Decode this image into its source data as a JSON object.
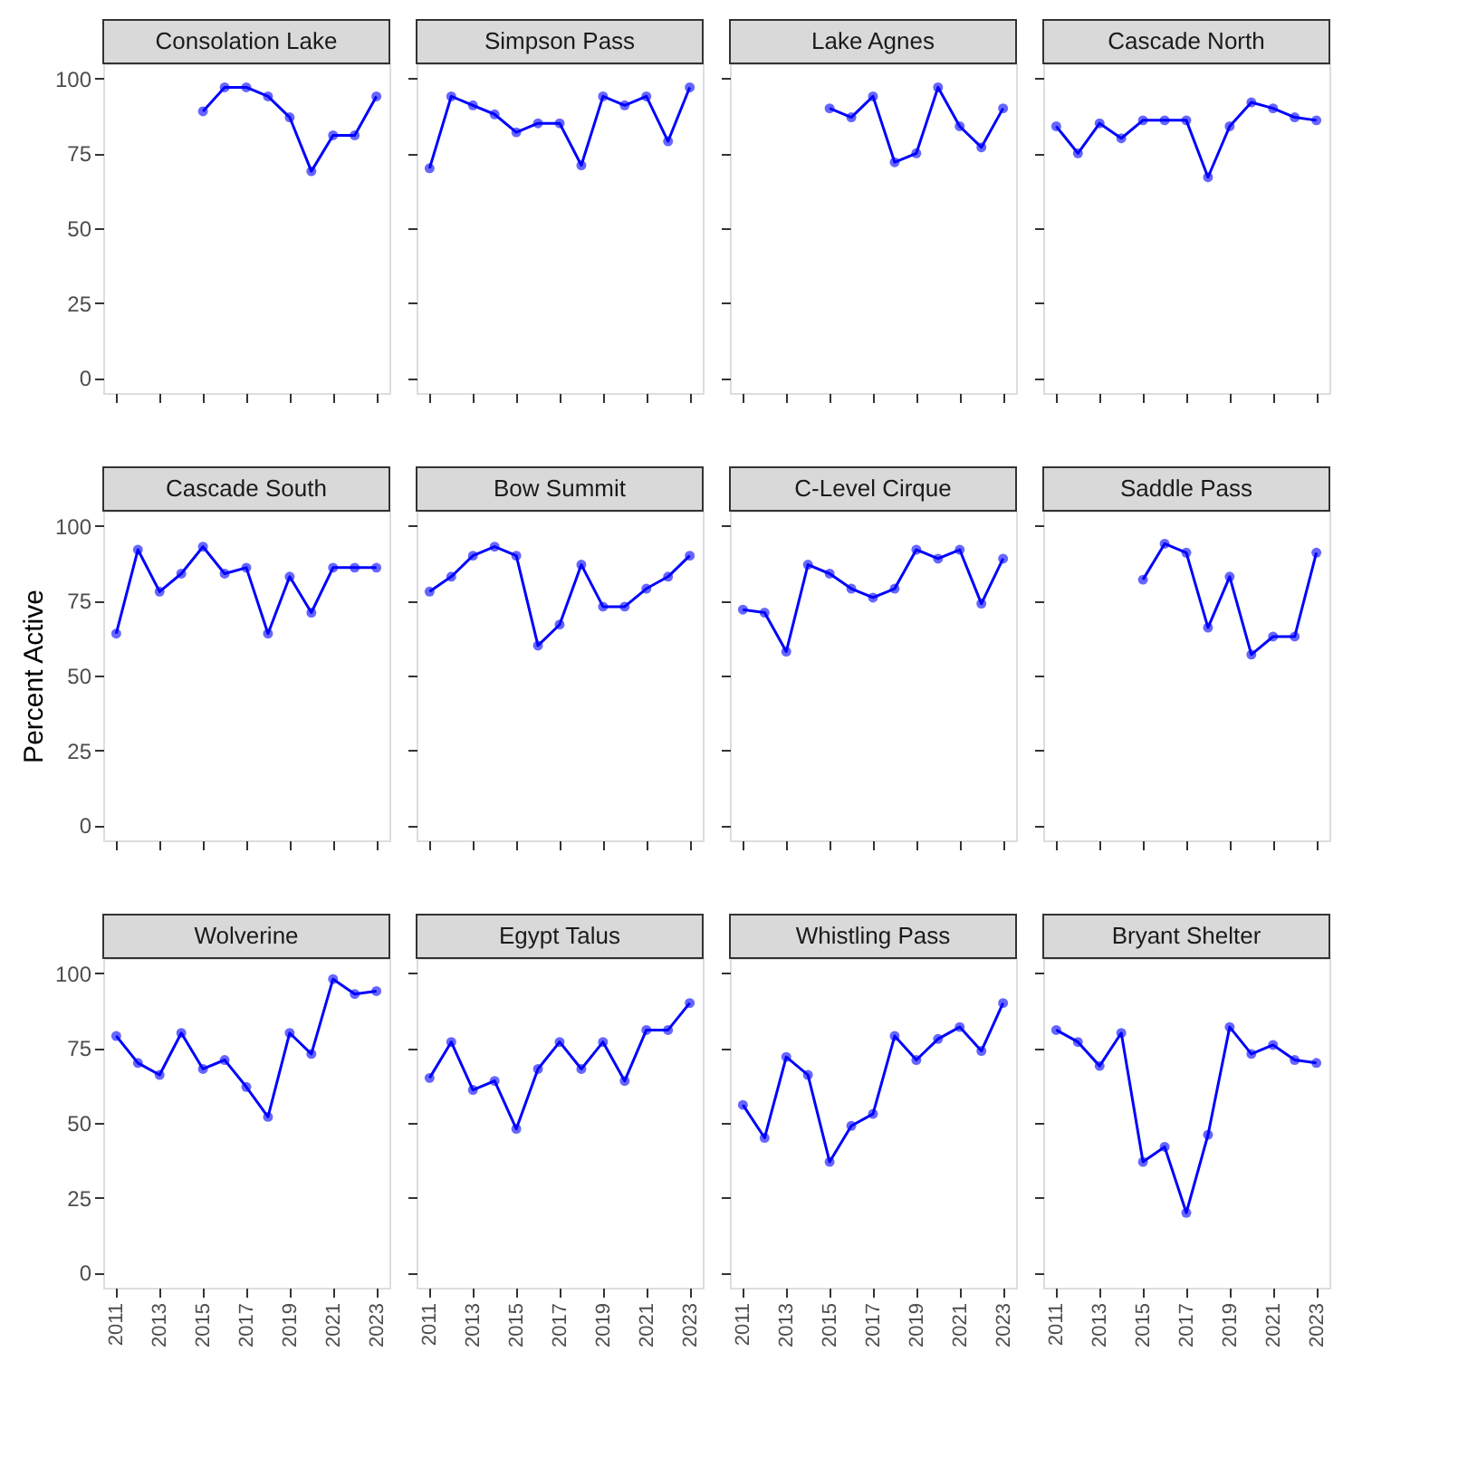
{
  "chart_data": [
    {
      "type": "line",
      "title": "Consolation Lake",
      "x": [
        2015,
        2016,
        2017,
        2018,
        2019,
        2020,
        2021,
        2022,
        2023
      ],
      "series": [
        {
          "color": "#0000ff",
          "values": [
            89,
            97,
            97,
            94,
            87,
            69,
            81,
            81,
            94
          ]
        }
      ],
      "xlim": [
        2010.4,
        2023.6
      ],
      "xticks": [
        2011,
        2013,
        2015,
        2017,
        2019,
        2021,
        2023
      ],
      "ylim": [
        -5,
        105
      ],
      "yticks": [
        0,
        25,
        50,
        75,
        100
      ],
      "grid": false,
      "marker": "circle",
      "tick_labels": "y"
    },
    {
      "type": "line",
      "title": "Simpson Pass",
      "x": [
        2011,
        2012,
        2013,
        2014,
        2015,
        2016,
        2017,
        2018,
        2019,
        2020,
        2021,
        2022,
        2023
      ],
      "series": [
        {
          "color": "#0000ff",
          "values": [
            70,
            94,
            91,
            88,
            82,
            85,
            85,
            71,
            94,
            91,
            94,
            79,
            97
          ]
        }
      ],
      "xlim": [
        2010.4,
        2023.6
      ],
      "xticks": [
        2011,
        2013,
        2015,
        2017,
        2019,
        2021,
        2023
      ],
      "ylim": [
        -5,
        105
      ],
      "yticks": [
        0,
        25,
        50,
        75,
        100
      ],
      "grid": false,
      "marker": "circle",
      "tick_labels": false
    },
    {
      "type": "line",
      "title": "Lake Agnes",
      "x": [
        2015,
        2016,
        2017,
        2018,
        2019,
        2020,
        2021,
        2022,
        2023
      ],
      "series": [
        {
          "color": "#0000ff",
          "values": [
            90,
            87,
            94,
            72,
            75,
            97,
            84,
            77,
            90
          ]
        }
      ],
      "xlim": [
        2010.4,
        2023.6
      ],
      "xticks": [
        2011,
        2013,
        2015,
        2017,
        2019,
        2021,
        2023
      ],
      "ylim": [
        -5,
        105
      ],
      "yticks": [
        0,
        25,
        50,
        75,
        100
      ],
      "grid": false,
      "marker": "circle",
      "tick_labels": false
    },
    {
      "type": "line",
      "title": "Cascade North",
      "x": [
        2011,
        2012,
        2013,
        2014,
        2015,
        2016,
        2017,
        2018,
        2019,
        2020,
        2021,
        2022,
        2023
      ],
      "series": [
        {
          "color": "#0000ff",
          "values": [
            84,
            75,
            85,
            80,
            86,
            86,
            86,
            67,
            84,
            92,
            90,
            87,
            86
          ]
        }
      ],
      "xlim": [
        2010.4,
        2023.6
      ],
      "xticks": [
        2011,
        2013,
        2015,
        2017,
        2019,
        2021,
        2023
      ],
      "ylim": [
        -5,
        105
      ],
      "yticks": [
        0,
        25,
        50,
        75,
        100
      ],
      "grid": false,
      "marker": "circle",
      "tick_labels": false
    },
    {
      "type": "line",
      "title": "Cascade South",
      "ylabel": "Percent Active",
      "x": [
        2011,
        2012,
        2013,
        2014,
        2015,
        2016,
        2017,
        2018,
        2019,
        2020,
        2021,
        2022,
        2023
      ],
      "series": [
        {
          "color": "#0000ff",
          "values": [
            64,
            92,
            78,
            84,
            93,
            84,
            86,
            64,
            83,
            71,
            86,
            86,
            86
          ]
        }
      ],
      "xlim": [
        2010.4,
        2023.6
      ],
      "xticks": [
        2011,
        2013,
        2015,
        2017,
        2019,
        2021,
        2023
      ],
      "ylim": [
        -5,
        105
      ],
      "yticks": [
        0,
        25,
        50,
        75,
        100
      ],
      "grid": false,
      "marker": "circle",
      "tick_labels": "y"
    },
    {
      "type": "line",
      "title": "Bow Summit",
      "x": [
        2011,
        2012,
        2013,
        2014,
        2015,
        2016,
        2017,
        2018,
        2019,
        2020,
        2021,
        2022,
        2023
      ],
      "series": [
        {
          "color": "#0000ff",
          "values": [
            78,
            83,
            90,
            93,
            90,
            60,
            67,
            87,
            73,
            73,
            79,
            83,
            90
          ]
        }
      ],
      "xlim": [
        2010.4,
        2023.6
      ],
      "xticks": [
        2011,
        2013,
        2015,
        2017,
        2019,
        2021,
        2023
      ],
      "ylim": [
        -5,
        105
      ],
      "yticks": [
        0,
        25,
        50,
        75,
        100
      ],
      "grid": false,
      "marker": "circle",
      "tick_labels": false
    },
    {
      "type": "line",
      "title": "C-Level Cirque",
      "x": [
        2011,
        2012,
        2013,
        2014,
        2015,
        2016,
        2017,
        2018,
        2019,
        2020,
        2021,
        2022,
        2023
      ],
      "series": [
        {
          "color": "#0000ff",
          "values": [
            72,
            71,
            58,
            87,
            84,
            79,
            76,
            79,
            92,
            89,
            92,
            74,
            89
          ]
        }
      ],
      "xlim": [
        2010.4,
        2023.6
      ],
      "xticks": [
        2011,
        2013,
        2015,
        2017,
        2019,
        2021,
        2023
      ],
      "ylim": [
        -5,
        105
      ],
      "yticks": [
        0,
        25,
        50,
        75,
        100
      ],
      "grid": false,
      "marker": "circle",
      "tick_labels": false
    },
    {
      "type": "line",
      "title": "Saddle Pass",
      "x": [
        2015,
        2016,
        2017,
        2018,
        2019,
        2020,
        2021,
        2022,
        2023
      ],
      "series": [
        {
          "color": "#0000ff",
          "values": [
            82,
            94,
            91,
            66,
            83,
            57,
            63,
            63,
            91
          ]
        }
      ],
      "xlim": [
        2010.4,
        2023.6
      ],
      "xticks": [
        2011,
        2013,
        2015,
        2017,
        2019,
        2021,
        2023
      ],
      "ylim": [
        -5,
        105
      ],
      "yticks": [
        0,
        25,
        50,
        75,
        100
      ],
      "grid": false,
      "marker": "circle",
      "tick_labels": false
    },
    {
      "type": "line",
      "title": "Wolverine",
      "x": [
        2011,
        2012,
        2013,
        2014,
        2015,
        2016,
        2017,
        2018,
        2019,
        2020,
        2021,
        2022,
        2023
      ],
      "series": [
        {
          "color": "#0000ff",
          "values": [
            79,
            70,
            66,
            80,
            68,
            71,
            62,
            52,
            80,
            73,
            98,
            93,
            94
          ]
        }
      ],
      "xlim": [
        2010.4,
        2023.6
      ],
      "xticks": [
        2011,
        2013,
        2015,
        2017,
        2019,
        2021,
        2023
      ],
      "ylim": [
        -5,
        105
      ],
      "yticks": [
        0,
        25,
        50,
        75,
        100
      ],
      "grid": false,
      "marker": "circle"
    },
    {
      "type": "line",
      "title": "Egypt Talus",
      "x": [
        2011,
        2012,
        2013,
        2014,
        2015,
        2016,
        2017,
        2018,
        2019,
        2020,
        2021,
        2022,
        2023
      ],
      "series": [
        {
          "color": "#0000ff",
          "values": [
            65,
            77,
            61,
            64,
            48,
            68,
            77,
            68,
            77,
            64,
            81,
            81,
            90
          ]
        }
      ],
      "xlim": [
        2010.4,
        2023.6
      ],
      "xticks": [
        2011,
        2013,
        2015,
        2017,
        2019,
        2021,
        2023
      ],
      "ylim": [
        -5,
        105
      ],
      "yticks": [
        0,
        25,
        50,
        75,
        100
      ],
      "grid": false,
      "marker": "circle",
      "tick_labels": "x"
    },
    {
      "type": "line",
      "title": "Whistling Pass",
      "x": [
        2011,
        2012,
        2013,
        2014,
        2015,
        2016,
        2017,
        2018,
        2019,
        2020,
        2021,
        2022,
        2023
      ],
      "series": [
        {
          "color": "#0000ff",
          "values": [
            56,
            45,
            72,
            66,
            37,
            49,
            53,
            79,
            71,
            78,
            82,
            74,
            90
          ]
        }
      ],
      "xlim": [
        2010.4,
        2023.6
      ],
      "xticks": [
        2011,
        2013,
        2015,
        2017,
        2019,
        2021,
        2023
      ],
      "ylim": [
        -5,
        105
      ],
      "yticks": [
        0,
        25,
        50,
        75,
        100
      ],
      "grid": false,
      "marker": "circle",
      "tick_labels": "x"
    },
    {
      "type": "line",
      "title": "Bryant Shelter",
      "x": [
        2011,
        2012,
        2013,
        2014,
        2015,
        2016,
        2017,
        2018,
        2019,
        2020,
        2021,
        2022,
        2023
      ],
      "series": [
        {
          "color": "#0000ff",
          "values": [
            81,
            77,
            69,
            80,
            37,
            42,
            20,
            46,
            82,
            73,
            76,
            71,
            70
          ]
        }
      ],
      "xlim": [
        2010.4,
        2023.6
      ],
      "xticks": [
        2011,
        2013,
        2015,
        2017,
        2019,
        2021,
        2023
      ],
      "ylim": [
        -5,
        105
      ],
      "yticks": [
        0,
        25,
        50,
        75,
        100
      ],
      "grid": false,
      "marker": "circle",
      "tick_labels": "x"
    }
  ]
}
